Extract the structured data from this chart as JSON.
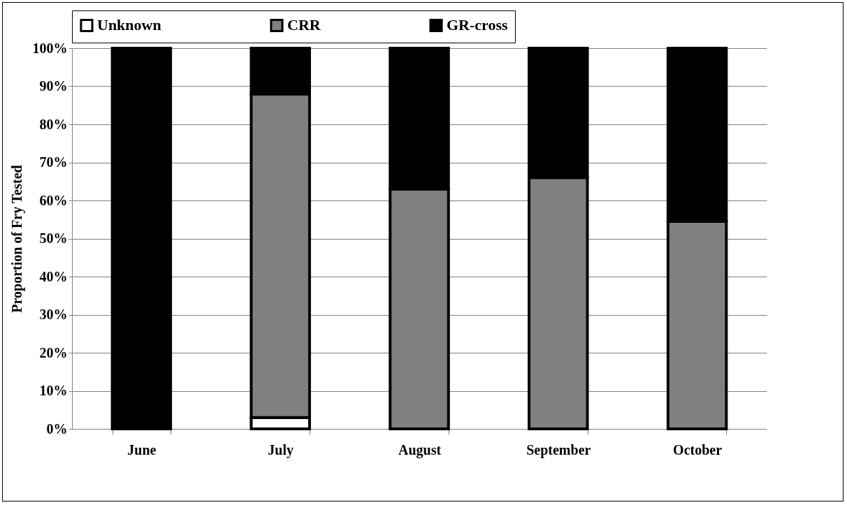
{
  "chart_data": {
    "type": "bar",
    "stacked": true,
    "ylabel": "Proportion of Fry Tested",
    "categories": [
      "June",
      "July",
      "August",
      "September",
      "October"
    ],
    "series": [
      {
        "name": "Unknown",
        "color": "#ffffff",
        "values": [
          0,
          3,
          0,
          0,
          0
        ]
      },
      {
        "name": "CRR",
        "color": "#808080",
        "values": [
          0,
          85,
          63,
          66,
          54.5
        ]
      },
      {
        "name": "GR-cross",
        "color": "#000000",
        "values": [
          100,
          12,
          37,
          34,
          45.5
        ]
      }
    ],
    "ylim": [
      0,
      100
    ],
    "yticks": [
      {
        "value": 0,
        "label": "0%"
      },
      {
        "value": 10,
        "label": "10%"
      },
      {
        "value": 20,
        "label": "20%"
      },
      {
        "value": 30,
        "label": "30%"
      },
      {
        "value": 40,
        "label": "40%"
      },
      {
        "value": 50,
        "label": "50%"
      },
      {
        "value": 60,
        "label": "60%"
      },
      {
        "value": 70,
        "label": "70%"
      },
      {
        "value": 80,
        "label": "80%"
      },
      {
        "value": 90,
        "label": "90%"
      },
      {
        "value": 100,
        "label": "100%"
      }
    ],
    "grid": "y",
    "legend": "top"
  }
}
